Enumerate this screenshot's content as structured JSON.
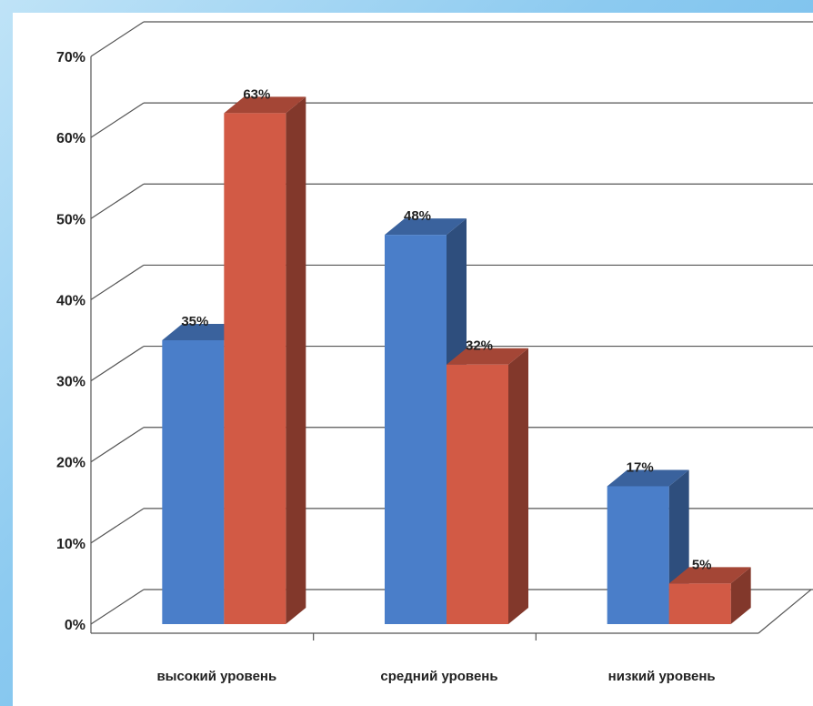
{
  "chart_data": {
    "type": "bar",
    "categories": [
      "высокий уровень",
      "средний уровень",
      "низкий уровень"
    ],
    "series": [
      {
        "values": [
          35,
          48,
          17
        ],
        "value_labels": [
          "35%",
          "48%",
          "17%"
        ],
        "color": "#4a7ec9"
      },
      {
        "values": [
          63,
          32,
          5
        ],
        "value_labels": [
          "63%",
          "32%",
          "5%"
        ],
        "color": "#d25a45"
      }
    ],
    "y_ticks": [
      "0%",
      "10%",
      "20%",
      "30%",
      "40%",
      "50%",
      "60%",
      "70%"
    ],
    "ylim": [
      0,
      70
    ],
    "grid": true,
    "style": "3d-clustered-column"
  }
}
